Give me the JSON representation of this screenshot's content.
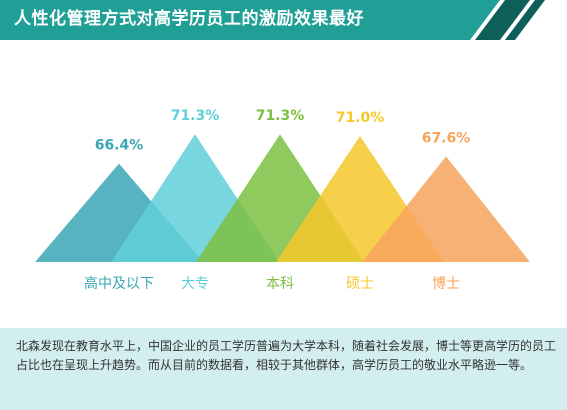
{
  "title": "人性化管理方式对高学历员工的激励效果最好",
  "colors": {
    "header_bg": "#1f9f95",
    "header_accent": "#0e5f5a",
    "footer_bg": "#d2eeee"
  },
  "chart_data": {
    "type": "area",
    "title": "",
    "categories": [
      "高中及以下",
      "大专",
      "本科",
      "硕士",
      "博士"
    ],
    "values": [
      66.4,
      71.3,
      71.3,
      71.0,
      67.6
    ],
    "value_labels": [
      "66.4%",
      "71.3%",
      "71.3%",
      "71.0%",
      "67.6%"
    ],
    "unit": "%",
    "colors": [
      "#3aa6b4",
      "#5fcfd8",
      "#7cc041",
      "#f5c82a",
      "#f7a35c"
    ],
    "label_colors": [
      "#3aa6b4",
      "#5fcfd8",
      "#7cc041",
      "#f5c82a",
      "#f7a35c"
    ]
  },
  "footer": {
    "text": "北森发现在教育水平上，中国企业的员工学历普遍为大学本科，随着社会发展，博士等更高学历的员工占比也在呈现上升趋势。而从目前的数据看，相较于其他群体，高学历员工的敬业水平略逊一等。"
  }
}
